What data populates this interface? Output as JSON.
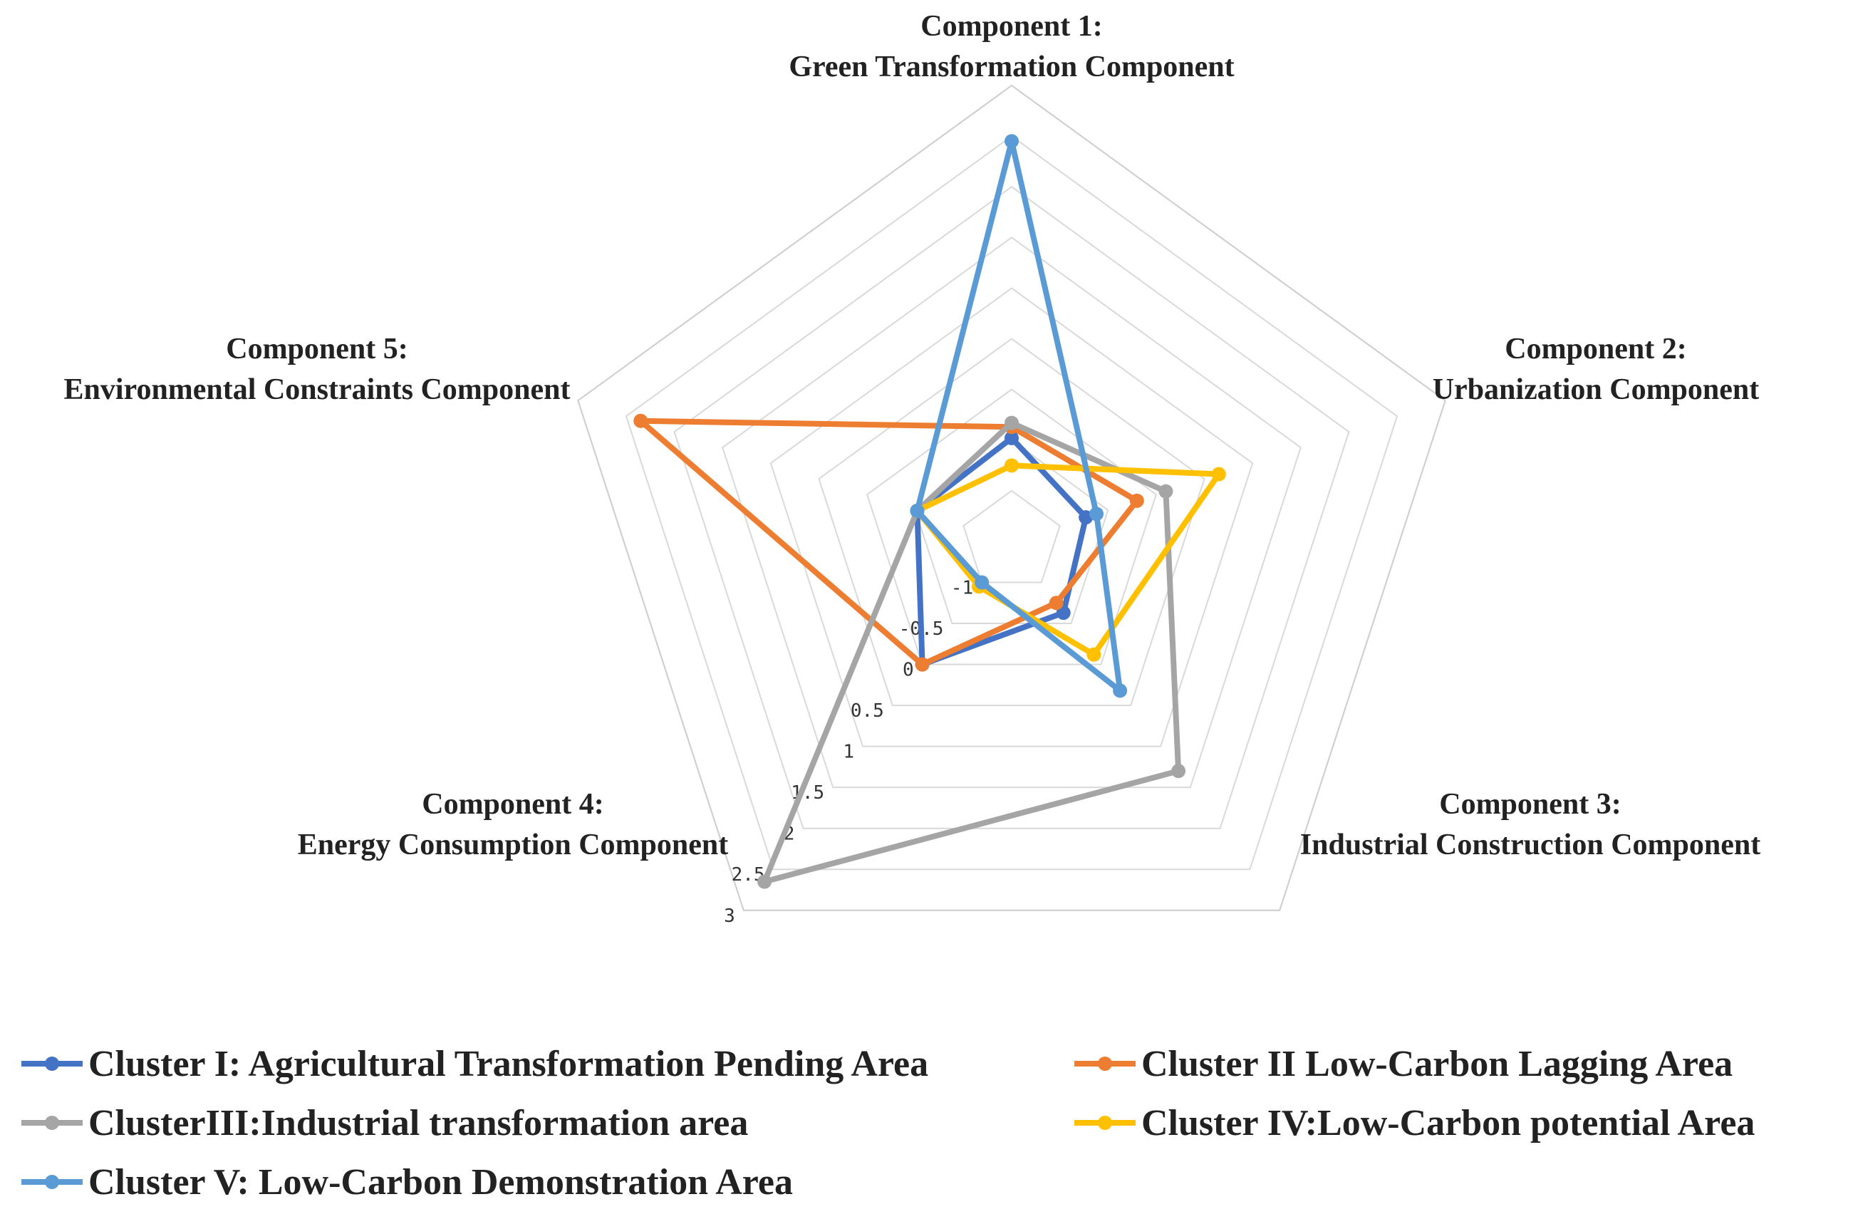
{
  "chart_data": {
    "type": "radar",
    "axes": [
      [
        "Component 1:",
        "Green Transformation Component"
      ],
      [
        "Component 2:",
        "Urbanization Component"
      ],
      [
        "Component 3:",
        "Industrial Construction Component"
      ],
      [
        "Component 4:",
        "Energy Consumption Component"
      ],
      [
        "Component 5:",
        "Environmental Constraints Component"
      ]
    ],
    "rlim": [
      -1.5,
      3
    ],
    "ticks": [
      -1,
      -0.5,
      0,
      0.5,
      1,
      1.5,
      2,
      2.5,
      3
    ],
    "tick_labels": [
      "-1",
      "-0.5",
      "0",
      "0.5",
      "1",
      "1.5",
      "2",
      "2.5",
      "3"
    ],
    "grid": true,
    "legend_position": "bottom",
    "series": [
      {
        "name": "Cluster I: Agricultural Transformation Pending Area",
        "color": "#4472C4",
        "values": [
          -0.48,
          -0.73,
          -0.63,
          0.0,
          -0.52
        ]
      },
      {
        "name": "Cluster II Low-Carbon Lagging Area",
        "color": "#ED7D31",
        "values": [
          -0.37,
          -0.2,
          -0.75,
          0.0,
          2.35
        ]
      },
      {
        "name": "ClusterIII:Industrial transformation area",
        "color": "#A5A5A5",
        "values": [
          -0.33,
          0.1,
          1.3,
          2.65,
          -0.52
        ]
      },
      {
        "name": "Cluster IV:Low-Carbon potential Area",
        "color": "#FFC000",
        "values": [
          -0.75,
          0.65,
          -0.12,
          -0.95,
          -0.52
        ]
      },
      {
        "name": "Cluster V: Low-Carbon Demonstration Area",
        "color": "#5B9BD5",
        "values": [
          2.45,
          -0.62,
          0.32,
          -1.0,
          -0.52
        ]
      }
    ]
  }
}
